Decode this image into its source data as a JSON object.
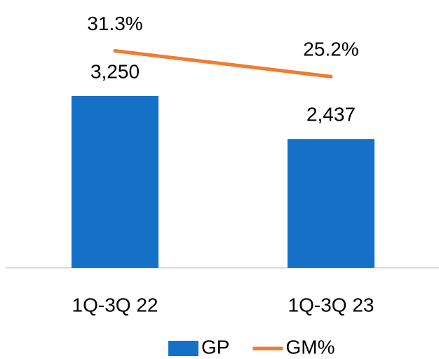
{
  "chart_data": {
    "type": "bar-line",
    "categories": [
      "1Q-3Q 22",
      "1Q-3Q 23"
    ],
    "series": [
      {
        "name": "GP",
        "type": "bar",
        "color": "#1570c8",
        "values": [
          3250,
          2437
        ],
        "value_labels": [
          "3,250",
          "2,437"
        ]
      },
      {
        "name": "GM%",
        "type": "line",
        "axis": "y2",
        "color": "#ed7d31",
        "values": [
          31.3,
          25.2
        ],
        "value_labels": [
          "31.3%",
          "25.2%"
        ]
      }
    ],
    "ylim": [
      0,
      4800
    ],
    "y2lim": [
      -20,
      40
    ],
    "legend": "bottom"
  }
}
